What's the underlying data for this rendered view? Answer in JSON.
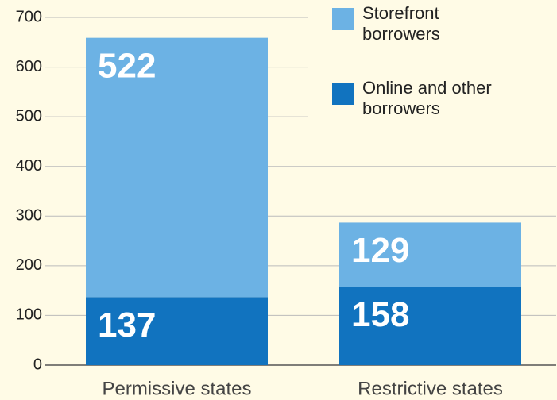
{
  "chart_data": {
    "type": "stacked_bar",
    "categories": [
      "Permissive states",
      "Restrictive states"
    ],
    "series": [
      {
        "name": "Online and other borrowers",
        "color": "#1173bf",
        "values": [
          137,
          158
        ]
      },
      {
        "name": "Storefront borrowers",
        "color": "#6cb2e4",
        "values": [
          522,
          129
        ]
      }
    ],
    "ylim": [
      0,
      700
    ],
    "yticks": [
      0,
      100,
      200,
      300,
      400,
      500,
      600,
      700
    ],
    "grid": true
  }
}
